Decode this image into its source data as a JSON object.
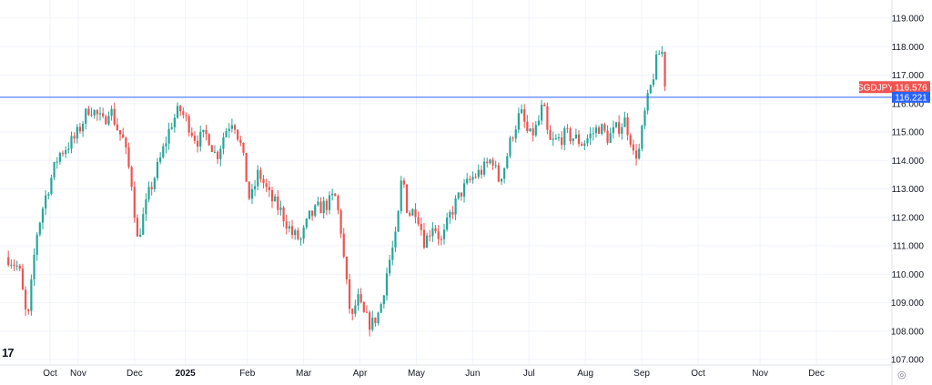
{
  "chart_data": {
    "type": "candlestick",
    "symbol": "SGDJPY",
    "last_price": "116.576",
    "hline_label": "116.221",
    "hline_value": 116.221,
    "ylim": [
      107.0,
      119.5
    ],
    "y_ticks": [
      "107.000",
      "108.000",
      "109.000",
      "110.000",
      "111.000",
      "112.000",
      "113.000",
      "114.000",
      "115.000",
      "116.000",
      "117.000",
      "118.000",
      "119.000"
    ],
    "y_tick_values": [
      107,
      108,
      109,
      110,
      111,
      112,
      113,
      114,
      115,
      116,
      117,
      118,
      119
    ],
    "x_ticks": [
      "Oct",
      "Nov",
      "Dec",
      "2025",
      "Feb",
      "Mar",
      "Apr",
      "May",
      "Jun",
      "Jul",
      "Aug",
      "Sep",
      "Oct",
      "Nov",
      "Dec"
    ],
    "x_tick_index": [
      0.0,
      0.5,
      1.5,
      2.4,
      3.5,
      4.5,
      5.5,
      6.5,
      7.5,
      8.5,
      9.5,
      10.5,
      11.5,
      12.6,
      13.6
    ],
    "x_range": [
      -0.55,
      14.15
    ],
    "colors": {
      "up": "#26a69a",
      "down": "#ef5350",
      "hline": "#2962ff",
      "grid": "#f0f3fa",
      "axis_text": "#131722"
    },
    "price_path": [
      [
        -0.74,
        110.6
      ],
      [
        -0.55,
        110.2
      ],
      [
        -0.4,
        108.2
      ],
      [
        -0.25,
        111.3
      ],
      [
        -0.1,
        112.6
      ],
      [
        0.15,
        114.2
      ],
      [
        0.45,
        114.8
      ],
      [
        0.7,
        115.9
      ],
      [
        0.95,
        115.3
      ],
      [
        1.05,
        115.9
      ],
      [
        1.2,
        115.1
      ],
      [
        1.3,
        114.7
      ],
      [
        1.45,
        113.2
      ],
      [
        1.55,
        111.2
      ],
      [
        1.75,
        112.8
      ],
      [
        1.95,
        114.0
      ],
      [
        2.15,
        115.3
      ],
      [
        2.3,
        115.8
      ],
      [
        2.45,
        115.3
      ],
      [
        2.6,
        114.7
      ],
      [
        2.8,
        114.9
      ],
      [
        2.95,
        114.1
      ],
      [
        3.1,
        115.0
      ],
      [
        3.25,
        115.5
      ],
      [
        3.4,
        114.4
      ],
      [
        3.55,
        112.5
      ],
      [
        3.7,
        113.6
      ],
      [
        3.9,
        112.7
      ],
      [
        4.1,
        112.2
      ],
      [
        4.3,
        111.4
      ],
      [
        4.45,
        111.2
      ],
      [
        4.6,
        112.0
      ],
      [
        4.75,
        112.3
      ],
      [
        4.95,
        112.5
      ],
      [
        5.05,
        112.8
      ],
      [
        5.15,
        111.8
      ],
      [
        5.25,
        109.8
      ],
      [
        5.35,
        108.3
      ],
      [
        5.45,
        109.2
      ],
      [
        5.55,
        108.6
      ],
      [
        5.7,
        108.2
      ],
      [
        5.85,
        108.7
      ],
      [
        6.0,
        110.3
      ],
      [
        6.15,
        111.4
      ],
      [
        6.25,
        113.6
      ],
      [
        6.35,
        112.1
      ],
      [
        6.5,
        112.3
      ],
      [
        6.65,
        111.1
      ],
      [
        6.8,
        111.8
      ],
      [
        6.95,
        111.1
      ],
      [
        7.1,
        112.1
      ],
      [
        7.3,
        112.9
      ],
      [
        7.5,
        113.4
      ],
      [
        7.7,
        113.7
      ],
      [
        7.85,
        114.1
      ],
      [
        7.95,
        113.3
      ],
      [
        8.05,
        113.7
      ],
      [
        8.2,
        114.9
      ],
      [
        8.35,
        115.7
      ],
      [
        8.5,
        114.8
      ],
      [
        8.65,
        115.2
      ],
      [
        8.75,
        116.0
      ],
      [
        8.85,
        114.6
      ],
      [
        9.0,
        114.7
      ],
      [
        9.15,
        114.9
      ],
      [
        9.3,
        114.8
      ],
      [
        9.45,
        114.6
      ],
      [
        9.6,
        114.9
      ],
      [
        9.75,
        115.2
      ],
      [
        9.9,
        114.8
      ],
      [
        10.05,
        115.1
      ],
      [
        10.2,
        115.4
      ],
      [
        10.3,
        114.8
      ],
      [
        10.35,
        114.2
      ],
      [
        10.45,
        114.3
      ],
      [
        10.55,
        115.6
      ],
      [
        10.65,
        116.5
      ],
      [
        10.75,
        117.4
      ],
      [
        10.85,
        118.0
      ],
      [
        10.92,
        116.6
      ]
    ]
  }
}
